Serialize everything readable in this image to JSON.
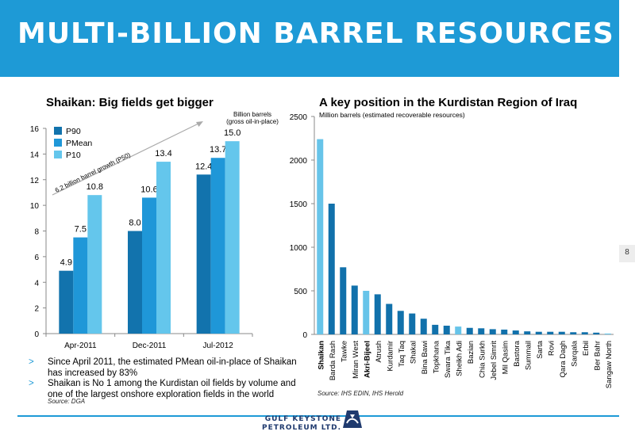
{
  "banner": {
    "title": "MULTI-BILLION BARREL RESOURCES"
  },
  "page_number": "8",
  "left": {
    "heading": "Shaikan: Big fields get bigger",
    "unit_label_line1": "Billion barrels",
    "unit_label_line2": "(gross oil-in-place)",
    "growth_label": "6.2 billion barrel growth (P50)",
    "bullets": [
      "Since April 2011, the estimated PMean oil-in-place of Shaikan has increased by 83%",
      "Shaikan is No 1 among the Kurdistan oil fields by volume and one of the largest onshore exploration fields in the world"
    ],
    "source": "Source: DGA"
  },
  "right": {
    "heading": "A key position in the Kurdistan  Region of Iraq",
    "source": "Source: IHS EDIN, IHS Herold"
  },
  "footer": {
    "logo_line1": "GULF KEYSTONE",
    "logo_line2": "PETROLEUM LTD."
  },
  "colors": {
    "accent": "#1e9ad6",
    "p90": "#1273ad",
    "pmean": "#1f97d8",
    "p10": "#64c6ec",
    "bar": "#1171ab",
    "bar_highlight": "#67c4e9"
  },
  "chart_data": [
    {
      "type": "bar",
      "title": "Shaikan: Big fields get bigger",
      "ylabel": "Billion barrels (gross oil-in-place)",
      "categories": [
        "Apr-2011",
        "Dec-2011",
        "Jul-2012"
      ],
      "series": [
        {
          "name": "P90",
          "values": [
            4.9,
            8.0,
            12.4
          ]
        },
        {
          "name": "PMean",
          "values": [
            7.5,
            10.6,
            13.7
          ]
        },
        {
          "name": "P10",
          "values": [
            10.8,
            13.4,
            15.0
          ]
        }
      ],
      "ylim": [
        0,
        16
      ],
      "yticks": [
        0,
        2,
        4,
        6,
        8,
        10,
        12,
        14,
        16
      ],
      "legend": "top-left",
      "grid": false
    },
    {
      "type": "bar",
      "title": "A key position in the Kurdistan  Region of Iraq",
      "ylabel": "Million barrels (estimated recoverable resources)",
      "categories": [
        "Shaikan",
        "Barda Rash",
        "Tawke",
        "Miran West",
        "Akri-Bijeel",
        "Atrush",
        "Kurdamir",
        "Taq Taq",
        "Shakal",
        "Bina Bawi",
        "Topkhana",
        "Swara Tika",
        "Sheikh Adi",
        "Bazian",
        "Chia Surkh",
        "Jebel Simrit",
        "Mil Qasim",
        "Bastora",
        "Summail",
        "Sarta",
        "Rovi",
        "Qara Dagh",
        "Sarqala",
        "Erbil",
        "Ber Bahr",
        "Sangaw North"
      ],
      "values": [
        2240,
        1500,
        770,
        560,
        500,
        460,
        350,
        270,
        240,
        180,
        110,
        100,
        90,
        75,
        70,
        60,
        55,
        45,
        35,
        30,
        30,
        30,
        25,
        25,
        20,
        10
      ],
      "highlighted": [
        "Shaikan",
        "Akri-Bijeel",
        "Sheikh Adi",
        "Sangaw North"
      ],
      "bold_labels": [
        "Shaikan",
        "Akri-Bijeel"
      ],
      "ylim": [
        0,
        2500
      ],
      "yticks": [
        0,
        500,
        1000,
        1500,
        2000,
        2500
      ],
      "grid": false
    }
  ]
}
